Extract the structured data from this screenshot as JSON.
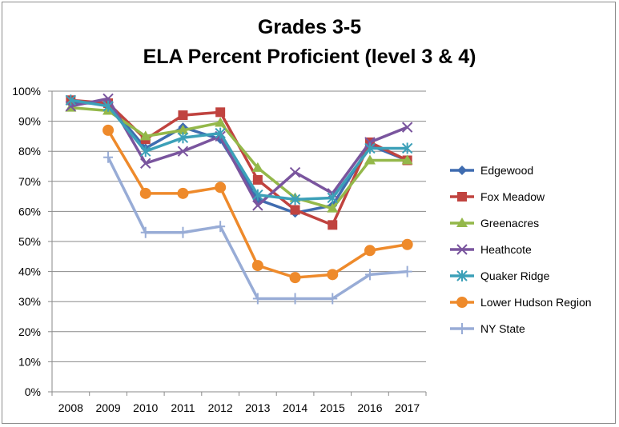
{
  "chart_data": {
    "type": "line",
    "title": "Grades 3-5",
    "subtitle": "ELA Percent Proficient (level 3 & 4)",
    "xlabel": "",
    "ylabel": "",
    "ylim": [
      0,
      100
    ],
    "y_ticks": [
      "0%",
      "10%",
      "20%",
      "30%",
      "40%",
      "50%",
      "60%",
      "70%",
      "80%",
      "90%",
      "100%"
    ],
    "grid": true,
    "legend_position": "right",
    "categories": [
      "2008",
      "2009",
      "2010",
      "2011",
      "2012",
      "2013",
      "2014",
      "2015",
      "2016",
      "2017"
    ],
    "series": [
      {
        "name": "Edgewood",
        "color": "#3F6CB0",
        "marker": "diamond",
        "values": [
          96,
          96,
          81,
          88,
          84,
          64,
          59.5,
          62,
          82,
          77
        ]
      },
      {
        "name": "Fox Meadow",
        "color": "#C0433F",
        "marker": "square",
        "values": [
          97,
          96,
          84,
          92,
          93,
          70.5,
          60.5,
          55.5,
          83,
          77
        ]
      },
      {
        "name": "Greenacres",
        "color": "#94B84A",
        "marker": "triangle",
        "values": [
          94.5,
          93.5,
          85,
          87,
          89.5,
          74.5,
          64.5,
          61,
          77,
          77
        ]
      },
      {
        "name": "Heathcote",
        "color": "#7A559E",
        "marker": "x",
        "values": [
          95,
          97.5,
          76,
          80,
          85,
          62,
          73,
          66,
          83,
          88
        ]
      },
      {
        "name": "Quaker Ridge",
        "color": "#3CA0B8",
        "marker": "asterisk",
        "values": [
          97,
          95,
          80,
          84.5,
          86,
          65.5,
          64,
          64.5,
          81,
          81
        ]
      },
      {
        "name": "Lower Hudson Region",
        "color": "#EE8A2B",
        "marker": "circle",
        "values": [
          null,
          87,
          66,
          66,
          68,
          42,
          38,
          39,
          47,
          49
        ]
      },
      {
        "name": "NY State",
        "color": "#98ACD6",
        "marker": "plus",
        "values": [
          null,
          78,
          53,
          53,
          55,
          31,
          31,
          31,
          39,
          40
        ]
      }
    ]
  }
}
